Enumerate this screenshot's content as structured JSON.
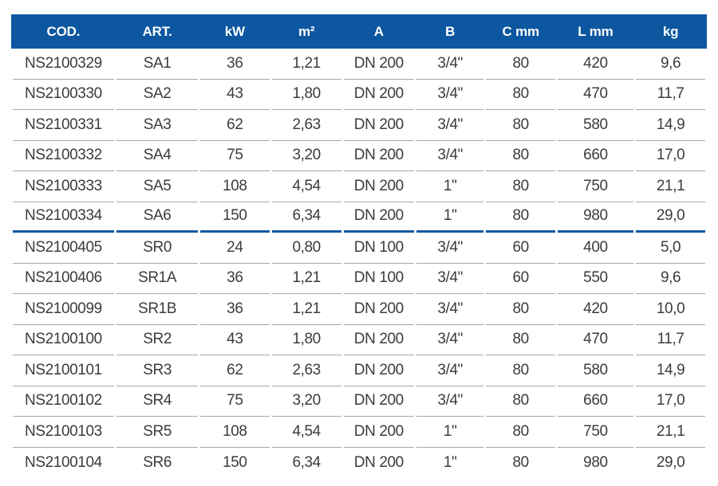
{
  "colors": {
    "header_bg": "#0d57a1",
    "header_text": "#ffffff",
    "row_text": "#3c3c3c",
    "row_separator": "#a8a8a8",
    "group_divider": "#0d57a1"
  },
  "table": {
    "columns": [
      {
        "key": "cod",
        "label": "COD."
      },
      {
        "key": "art",
        "label": "ART."
      },
      {
        "key": "kw",
        "label": "kW"
      },
      {
        "key": "m2",
        "label": "m²"
      },
      {
        "key": "a",
        "label": "A"
      },
      {
        "key": "b",
        "label": "B"
      },
      {
        "key": "c-mm",
        "label": "C mm"
      },
      {
        "key": "l-mm",
        "label": "L mm"
      },
      {
        "key": "kg",
        "label": "kg"
      }
    ],
    "row_groups": [
      {
        "rows": [
          [
            "NS2100329",
            "SA1",
            "36",
            "1,21",
            "DN 200",
            "3/4\"",
            "80",
            "420",
            "9,6"
          ],
          [
            "NS2100330",
            "SA2",
            "43",
            "1,80",
            "DN 200",
            "3/4\"",
            "80",
            "470",
            "11,7"
          ],
          [
            "NS2100331",
            "SA3",
            "62",
            "2,63",
            "DN 200",
            "3/4\"",
            "80",
            "580",
            "14,9"
          ],
          [
            "NS2100332",
            "SA4",
            "75",
            "3,20",
            "DN 200",
            "3/4\"",
            "80",
            "660",
            "17,0"
          ],
          [
            "NS2100333",
            "SA5",
            "108",
            "4,54",
            "DN 200",
            "1\"",
            "80",
            "750",
            "21,1"
          ],
          [
            "NS2100334",
            "SA6",
            "150",
            "6,34",
            "DN 200",
            "1\"",
            "80",
            "980",
            "29,0"
          ]
        ]
      },
      {
        "rows": [
          [
            "NS2100405",
            "SR0",
            "24",
            "0,80",
            "DN 100",
            "3/4\"",
            "60",
            "400",
            "5,0"
          ],
          [
            "NS2100406",
            "SR1A",
            "36",
            "1,21",
            "DN 100",
            "3/4\"",
            "60",
            "550",
            "9,6"
          ],
          [
            "NS2100099",
            "SR1B",
            "36",
            "1,21",
            "DN 200",
            "3/4\"",
            "80",
            "420",
            "10,0"
          ],
          [
            "NS2100100",
            "SR2",
            "43",
            "1,80",
            "DN 200",
            "3/4\"",
            "80",
            "470",
            "11,7"
          ],
          [
            "NS2100101",
            "SR3",
            "62",
            "2,63",
            "DN 200",
            "3/4\"",
            "80",
            "580",
            "14,9"
          ],
          [
            "NS2100102",
            "SR4",
            "75",
            "3,20",
            "DN 200",
            "3/4\"",
            "80",
            "660",
            "17,0"
          ],
          [
            "NS2100103",
            "SR5",
            "108",
            "4,54",
            "DN 200",
            "1\"",
            "80",
            "750",
            "21,1"
          ],
          [
            "NS2100104",
            "SR6",
            "150",
            "6,34",
            "DN 200",
            "1\"",
            "80",
            "980",
            "29,0"
          ]
        ]
      }
    ]
  }
}
